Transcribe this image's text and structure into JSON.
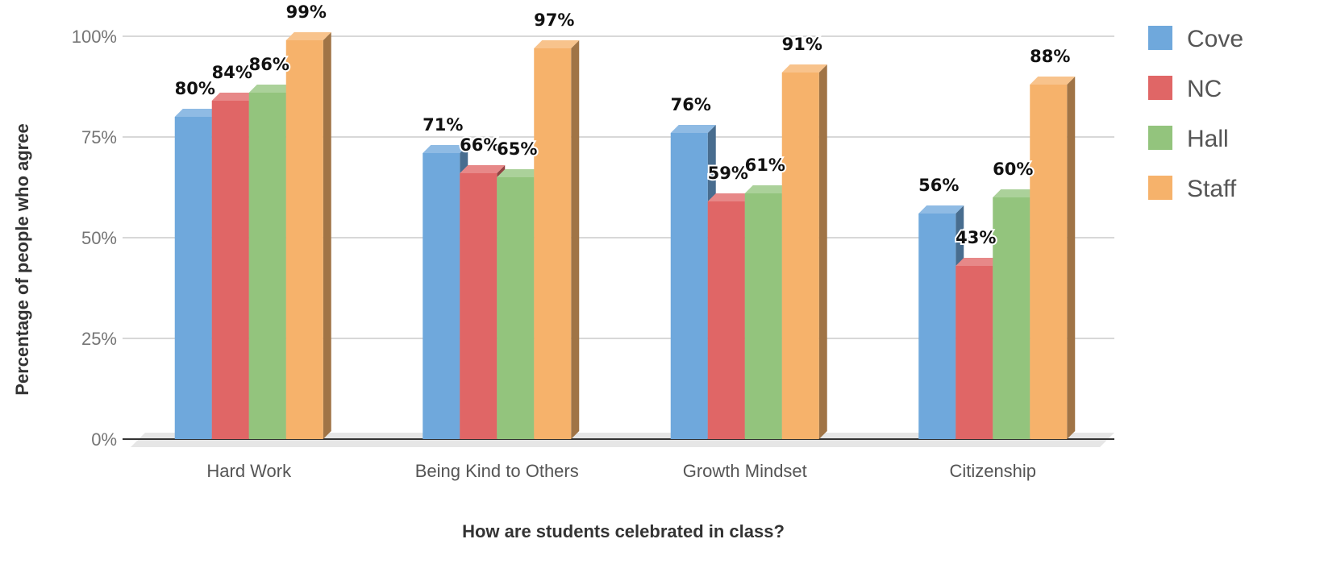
{
  "chart_data": {
    "type": "bar",
    "title": "",
    "xlabel": "How are students celebrated in class?",
    "ylabel": "Percentage of people who agree",
    "categories": [
      "Hard Work",
      "Being Kind to Others",
      "Growth Mindset",
      "Citizenship"
    ],
    "series": [
      {
        "name": "Cove",
        "color": "#6fa8dc",
        "values": [
          80,
          71,
          76,
          56
        ]
      },
      {
        "name": "NC",
        "color": "#e06666",
        "values": [
          84,
          66,
          59,
          43
        ]
      },
      {
        "name": "Hall",
        "color": "#93c47d",
        "values": [
          86,
          65,
          61,
          60
        ]
      },
      {
        "name": "Staff",
        "color": "#f6b26b",
        "values": [
          99,
          97,
          91,
          88
        ]
      }
    ],
    "data_labels": [
      [
        "80%",
        "71%",
        "76%",
        "56%"
      ],
      [
        "84%",
        "66%",
        "59%",
        "43%"
      ],
      [
        "86%",
        "65%",
        "61%",
        "60%"
      ],
      [
        "99%",
        "97%",
        "91%",
        "88%"
      ]
    ],
    "y_ticks": [
      "0%",
      "25%",
      "50%",
      "75%",
      "100%"
    ],
    "y_tick_values": [
      0,
      25,
      50,
      75,
      100
    ],
    "ylim": [
      0,
      100
    ],
    "grid": true,
    "legend_position": "right",
    "style": "3d-bar"
  }
}
